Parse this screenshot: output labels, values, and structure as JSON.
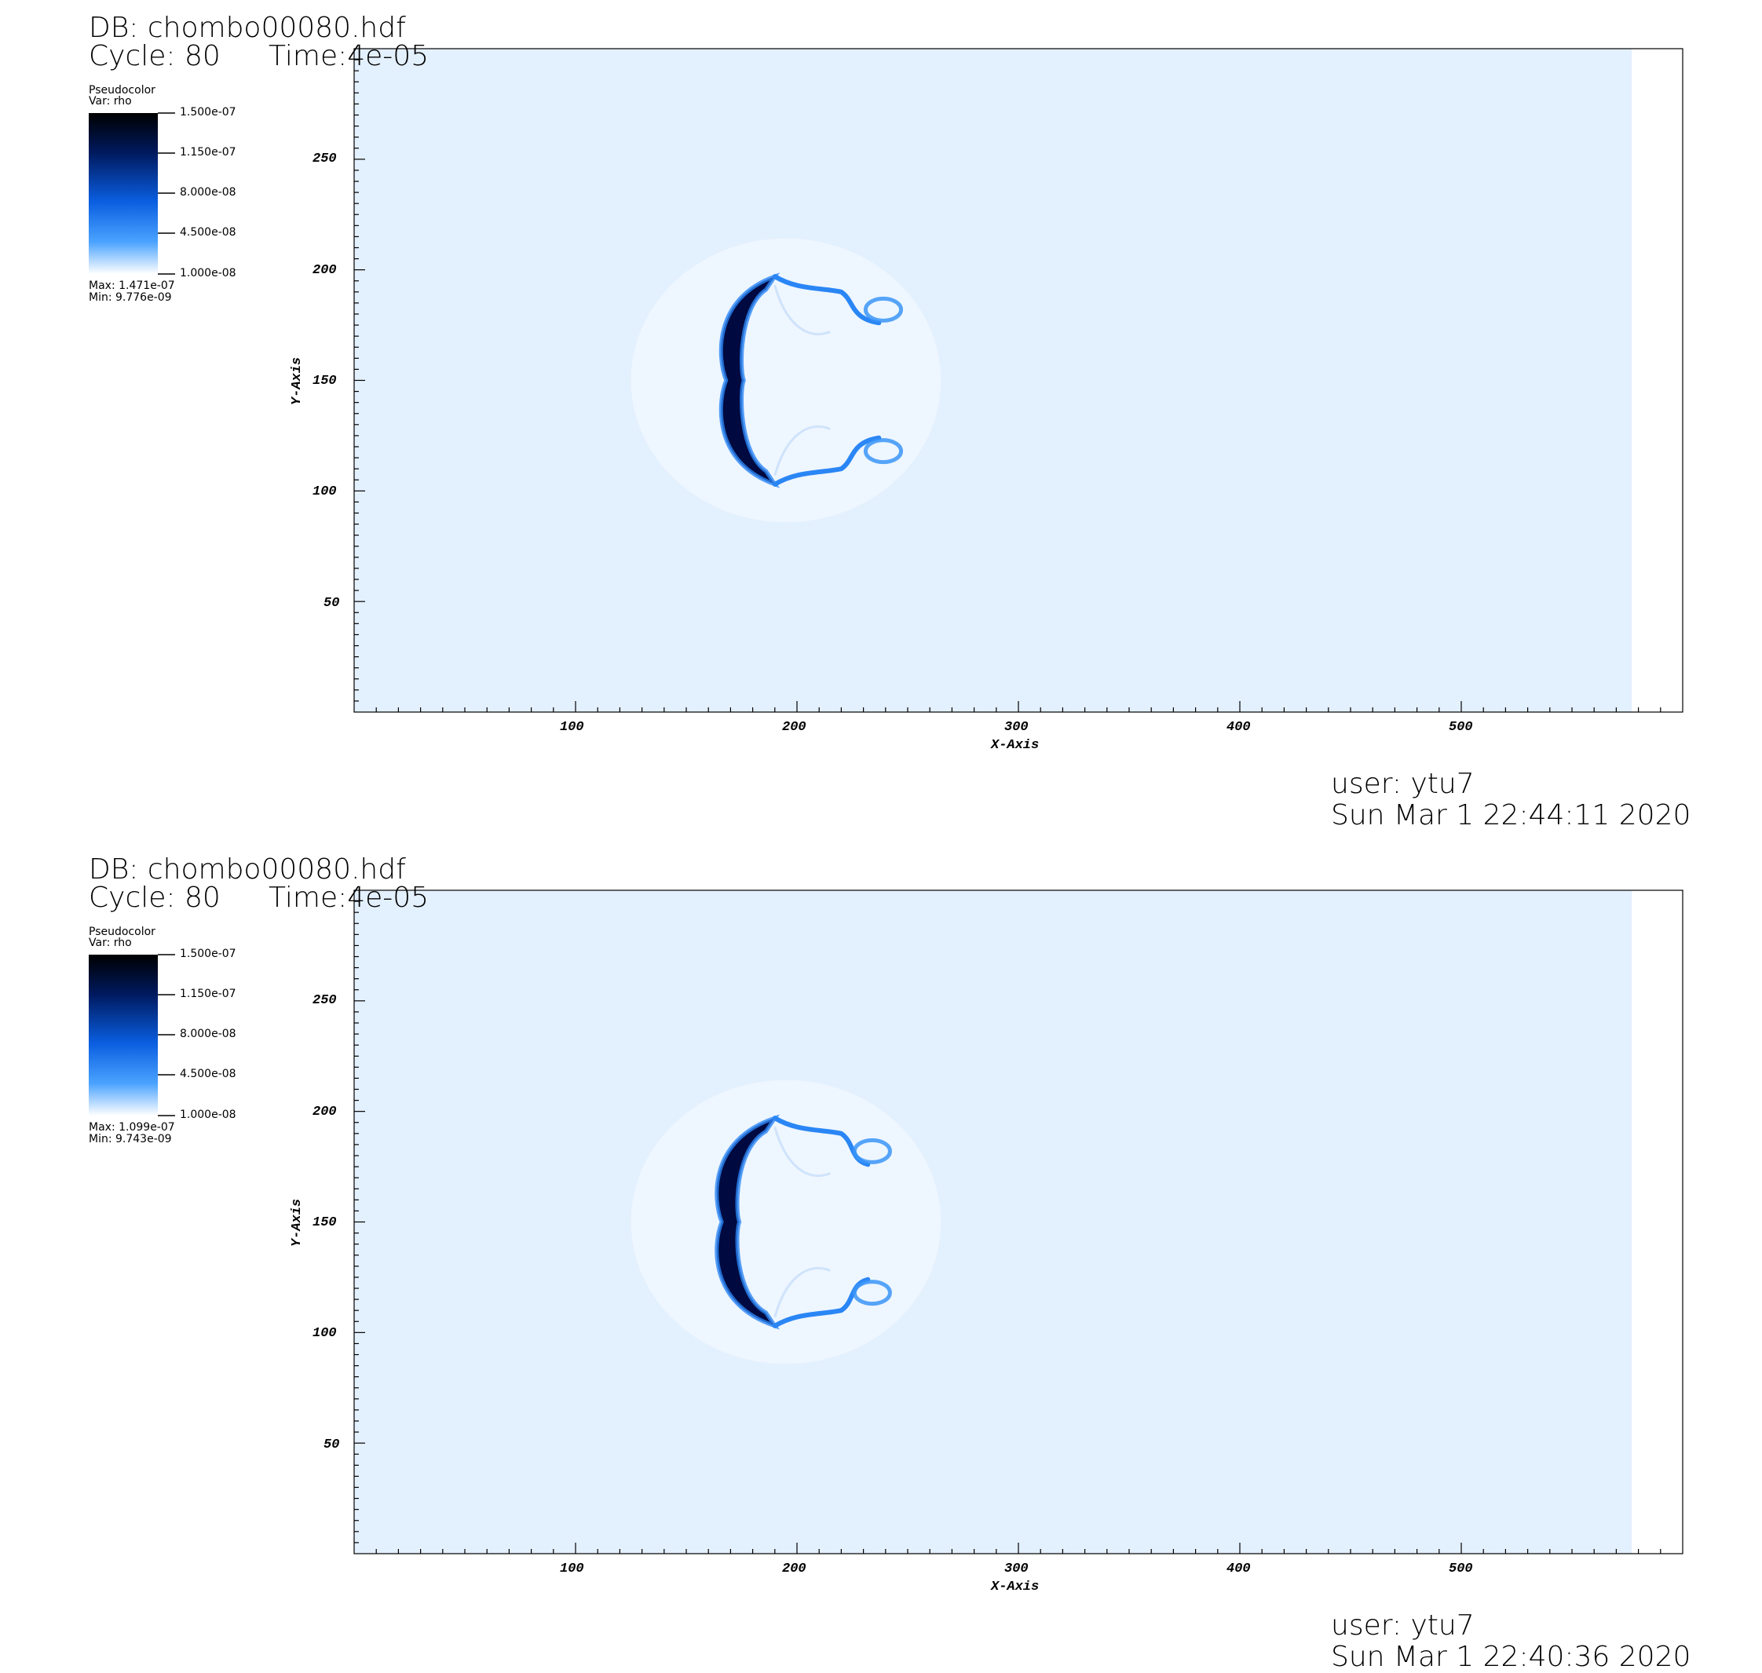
{
  "colors": {
    "background": "#ffffff",
    "field_light": "#e3f0fd",
    "field_mid": "#2a86f5",
    "field_dark": "#000a40",
    "colorbar_top": "#000000",
    "colorbar_mid": "#0a6cf0",
    "colorbar_bottom": "#ffffff"
  },
  "panels": [
    {
      "db": "DB: chombo00080.hdf",
      "cycle": "Cycle: 80",
      "time": "Time:4e-05",
      "legend": {
        "plot": "Pseudocolor",
        "var": "Var: rho",
        "ticks": [
          "1.500e-07",
          "1.150e-07",
          "8.000e-08",
          "4.500e-08",
          "1.000e-08"
        ],
        "max": "Max:  1.471e-07",
        "min": "Min:  9.776e-09"
      },
      "user": "user: ytu7",
      "date": "Sun Mar  1 22:44:11 2020"
    },
    {
      "db": "DB: chombo00080.hdf",
      "cycle": "Cycle: 80",
      "time": "Time:4e-05",
      "legend": {
        "plot": "Pseudocolor",
        "var": "Var: rho",
        "ticks": [
          "1.500e-07",
          "1.150e-07",
          "8.000e-08",
          "4.500e-08",
          "1.000e-08"
        ],
        "max": "Max:  1.099e-07",
        "min": "Min:  9.743e-09"
      },
      "user": "user: ytu7",
      "date": "Sun Mar  1 22:40:36 2020"
    }
  ],
  "chart_data": [
    {
      "type": "heatmap",
      "variable": "rho",
      "xlabel": "X-Axis",
      "ylabel": "Y-Axis",
      "xlim": [
        0,
        600
      ],
      "ylim": [
        0,
        300
      ],
      "xticks": [
        100,
        200,
        300,
        400,
        500
      ],
      "yticks": [
        50,
        100,
        150,
        200,
        250
      ],
      "colorbar_range": [
        1e-08,
        1.5e-07
      ],
      "data_max": 1.471e-07,
      "data_min": 9.776e-09,
      "data_extent_x": [
        0,
        577
      ],
      "features": {
        "front_x": [
          168,
          190
        ],
        "front_y": [
          103,
          197
        ],
        "vortex_tips_x": [
          220,
          245
        ]
      }
    },
    {
      "type": "heatmap",
      "variable": "rho",
      "xlabel": "X-Axis",
      "ylabel": "Y-Axis",
      "xlim": [
        0,
        600
      ],
      "ylim": [
        0,
        300
      ],
      "xticks": [
        100,
        200,
        300,
        400,
        500
      ],
      "yticks": [
        50,
        100,
        150,
        200,
        250
      ],
      "colorbar_range": [
        1e-08,
        1.5e-07
      ],
      "data_max": 1.099e-07,
      "data_min": 9.743e-09,
      "data_extent_x": [
        0,
        577
      ],
      "features": {
        "front_x": [
          166,
          190
        ],
        "front_y": [
          103,
          197
        ],
        "vortex_tips_x": [
          220,
          240
        ]
      }
    }
  ]
}
